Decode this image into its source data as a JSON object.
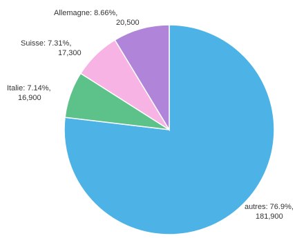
{
  "chart_data": {
    "type": "pie",
    "title": "",
    "slices": [
      {
        "label": "autres",
        "percent_text": "76.9%",
        "value_text": "181,900",
        "value": 181900,
        "percent": 76.9,
        "color": "#4db3e6"
      },
      {
        "label": "Italie",
        "percent_text": "7.14%",
        "value_text": "16,900",
        "value": 16900,
        "percent": 7.14,
        "color": "#5cc28a"
      },
      {
        "label": "Suisse",
        "percent_text": "7.31%",
        "value_text": "17,300",
        "value": 17300,
        "percent": 7.31,
        "color": "#f7b3e4"
      },
      {
        "label": "Allemagne",
        "percent_text": "8.66%",
        "value_text": "20,500",
        "value": 20500,
        "percent": 8.66,
        "color": "#b084d8"
      }
    ]
  }
}
